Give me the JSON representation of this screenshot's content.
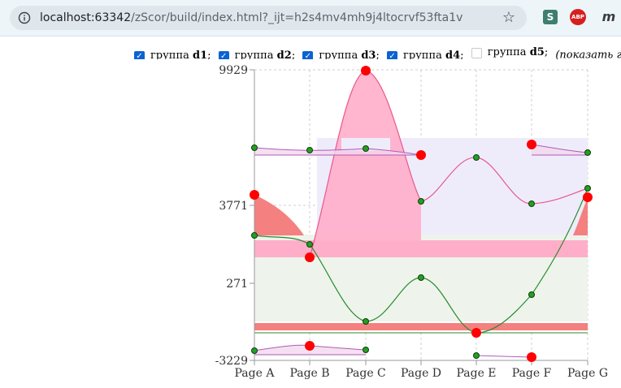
{
  "browser": {
    "url_host": "localhost:63342",
    "url_path": "/zScor/build/index.html?_ijt=h2s4mv4mh9j4ltocrvf53fta1v",
    "info_icon": "info-circle-icon",
    "star_icon": "star-outline-icon",
    "star_glyph": "☆",
    "extensions": [
      {
        "name": "s-extension-icon",
        "label": "S"
      },
      {
        "name": "adblock-plus-icon",
        "label": "ABP"
      },
      {
        "name": "m-extension-icon",
        "label": "m"
      }
    ]
  },
  "controls": {
    "groups": [
      {
        "prefix": "группа ",
        "id": "d1",
        "suffix": ";",
        "checked": true
      },
      {
        "prefix": "группа ",
        "id": "d2",
        "suffix": ";",
        "checked": true
      },
      {
        "prefix": "группа ",
        "id": "d3",
        "suffix": ";",
        "checked": true
      },
      {
        "prefix": "группа ",
        "id": "d4",
        "suffix": ";",
        "checked": true
      },
      {
        "prefix": "группа ",
        "id": "d5",
        "suffix": ";",
        "checked": false
      }
    ],
    "note": "(показать груп"
  },
  "colors": {
    "pink_line": "#e8588f",
    "pink_fill": "#ffaec9",
    "lavender_fill": "#eeecfb",
    "green_line": "#2c8a2c",
    "green_fill": "#eef4ec",
    "red_band": "#f48080",
    "red_dot": "#ff0000",
    "green_dot": "#22a022",
    "purple_line": "#b05ab8",
    "purple_fill": "#f2d8ee",
    "grid": "#cfcfcf",
    "axis": "#999999"
  },
  "chart_data": {
    "type": "area",
    "categories": [
      "Page A",
      "Page B",
      "Page C",
      "Page D",
      "Page E",
      "Page F",
      "Page G"
    ],
    "y_axis_labels": [
      "9929",
      "3771",
      "271",
      "-3229"
    ],
    "y_scale_note": "non-linear axis; labelled ticks at 9929, 3771, 271, -3229",
    "grid": true,
    "series": [
      {
        "group": "pink",
        "values": [
          null,
          null,
          9929,
          3050,
          5100,
          2950,
          3400
        ],
        "points": [
          "",
          "red",
          "red",
          "green",
          "green",
          "green",
          "green"
        ]
      },
      {
        "group": "green",
        "values": [
          null,
          1900,
          -2650,
          255,
          -3229,
          120,
          3771
        ],
        "points": [
          "",
          "green",
          "green",
          "green",
          "red",
          "green",
          "green"
        ]
      }
    ],
    "markers_note": "red dots mark extremes; green dots mark regular points"
  }
}
